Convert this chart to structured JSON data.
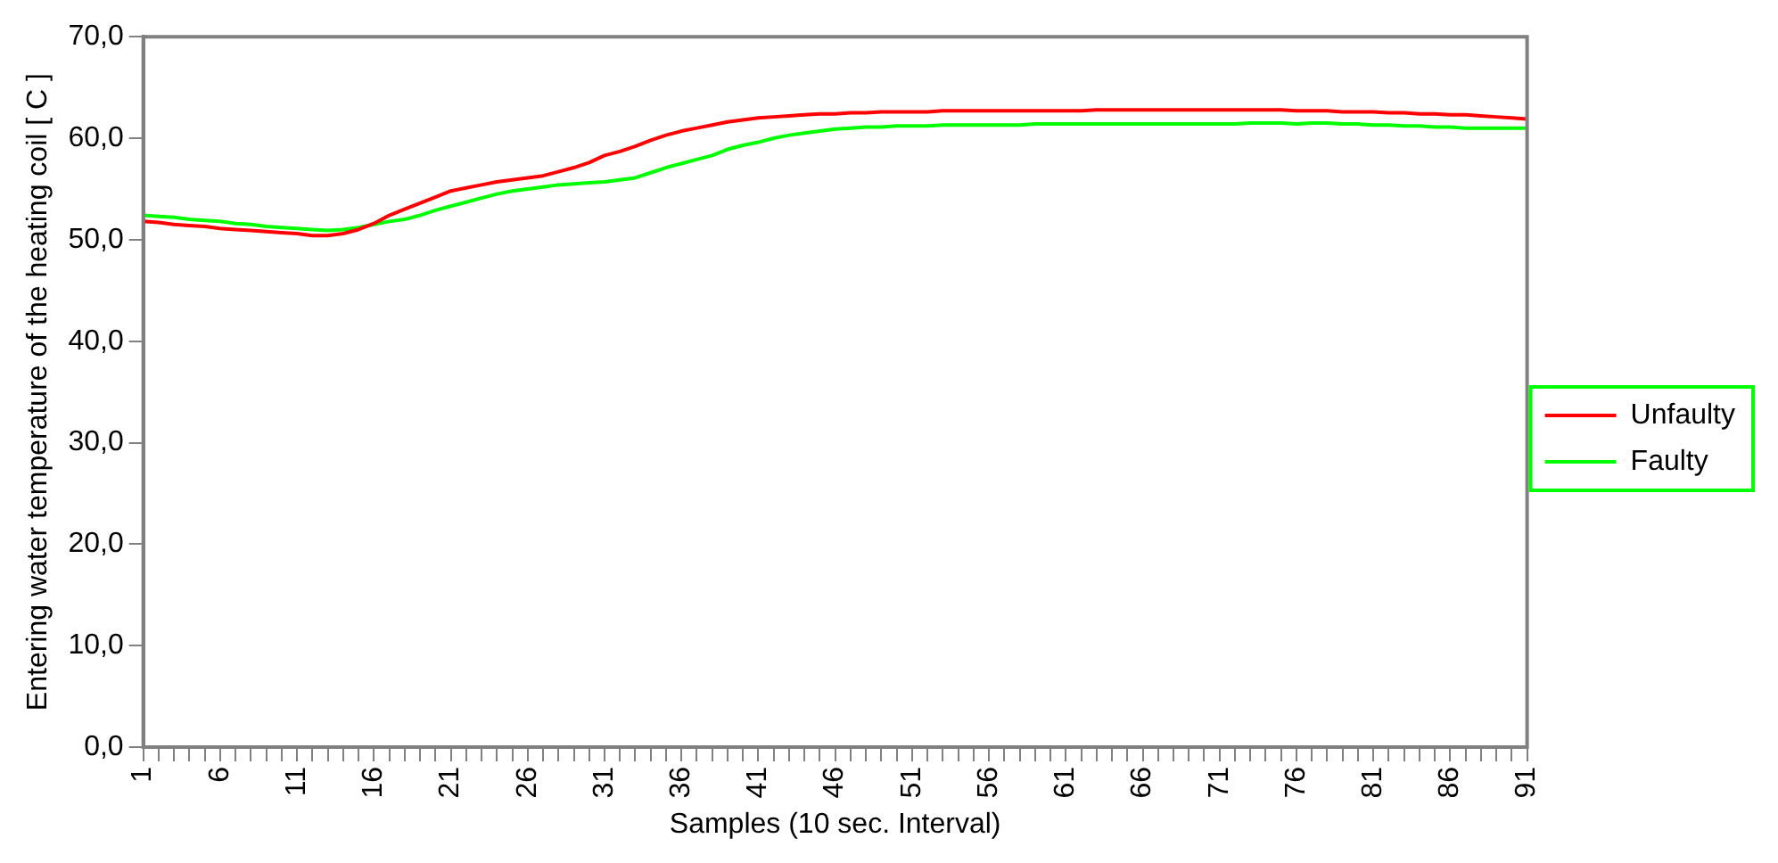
{
  "chart_data": {
    "type": "line",
    "xlabel": "Samples (10 sec. Interval)",
    "ylabel": "Entering water temperature of the heating coil [ C ]",
    "categories": [
      "1",
      null,
      null,
      null,
      null,
      "6",
      null,
      null,
      null,
      null,
      "11",
      null,
      null,
      null,
      null,
      "16",
      null,
      null,
      null,
      null,
      "21",
      null,
      null,
      null,
      null,
      "26",
      null,
      null,
      null,
      null,
      "31",
      null,
      null,
      null,
      null,
      "36",
      null,
      null,
      null,
      null,
      "41",
      null,
      null,
      null,
      null,
      "46",
      null,
      null,
      null,
      null,
      "51",
      null,
      null,
      null,
      null,
      "56",
      null,
      null,
      null,
      null,
      "61",
      null,
      null,
      null,
      null,
      "66",
      null,
      null,
      null,
      null,
      "71",
      null,
      null,
      null,
      null,
      "76",
      null,
      null,
      null,
      null,
      "81",
      null,
      null,
      null,
      null,
      "86",
      null,
      null,
      null,
      null,
      "91"
    ],
    "series": [
      {
        "name": "Unfaulty",
        "color": "#ff0000",
        "values": [
          51.8,
          51.7,
          51.5,
          51.4,
          51.3,
          51.1,
          51.0,
          50.9,
          50.8,
          50.7,
          50.6,
          50.4,
          50.4,
          50.6,
          51.0,
          51.6,
          52.4,
          53.0,
          53.6,
          54.2,
          54.8,
          55.1,
          55.4,
          55.7,
          55.9,
          56.1,
          56.3,
          56.7,
          57.1,
          57.6,
          58.3,
          58.7,
          59.2,
          59.8,
          60.3,
          60.7,
          61.0,
          61.3,
          61.6,
          61.8,
          62.0,
          62.1,
          62.2,
          62.3,
          62.4,
          62.4,
          62.5,
          62.5,
          62.6,
          62.6,
          62.6,
          62.6,
          62.7,
          62.7,
          62.7,
          62.7,
          62.7,
          62.7,
          62.7,
          62.7,
          62.7,
          62.7,
          62.8,
          62.8,
          62.8,
          62.8,
          62.8,
          62.8,
          62.8,
          62.8,
          62.8,
          62.8,
          62.8,
          62.8,
          62.8,
          62.7,
          62.7,
          62.7,
          62.6,
          62.6,
          62.6,
          62.5,
          62.5,
          62.4,
          62.4,
          62.3,
          62.3,
          62.2,
          62.1,
          62.0,
          61.9
        ]
      },
      {
        "name": "Faulty",
        "color": "#00ff00",
        "values": [
          52.4,
          52.3,
          52.2,
          52.0,
          51.9,
          51.8,
          51.6,
          51.5,
          51.3,
          51.2,
          51.1,
          51.0,
          50.9,
          51.0,
          51.2,
          51.5,
          51.8,
          52.0,
          52.4,
          52.9,
          53.3,
          53.7,
          54.1,
          54.5,
          54.8,
          55.0,
          55.2,
          55.4,
          55.5,
          55.6,
          55.7,
          55.9,
          56.1,
          56.6,
          57.1,
          57.5,
          57.9,
          58.3,
          58.9,
          59.3,
          59.6,
          60.0,
          60.3,
          60.5,
          60.7,
          60.9,
          61.0,
          61.1,
          61.1,
          61.2,
          61.2,
          61.2,
          61.3,
          61.3,
          61.3,
          61.3,
          61.3,
          61.3,
          61.4,
          61.4,
          61.4,
          61.4,
          61.4,
          61.4,
          61.4,
          61.4,
          61.4,
          61.4,
          61.4,
          61.4,
          61.4,
          61.4,
          61.5,
          61.5,
          61.5,
          61.4,
          61.5,
          61.5,
          61.4,
          61.4,
          61.3,
          61.3,
          61.2,
          61.2,
          61.1,
          61.1,
          61.0,
          61.0,
          61.0,
          61.0,
          61.0
        ]
      }
    ],
    "ylim": [
      0,
      70
    ],
    "yticks": [
      {
        "value": 0,
        "label": "0,0"
      },
      {
        "value": 10,
        "label": "10,0"
      },
      {
        "value": 20,
        "label": "20,0"
      },
      {
        "value": 30,
        "label": "30,0"
      },
      {
        "value": 40,
        "label": "40,0"
      },
      {
        "value": 50,
        "label": "50,0"
      },
      {
        "value": 60,
        "label": "60,0"
      },
      {
        "value": 70,
        "label": "70,0"
      }
    ],
    "legend": "right",
    "marker": "none",
    "line_style": "solid"
  }
}
